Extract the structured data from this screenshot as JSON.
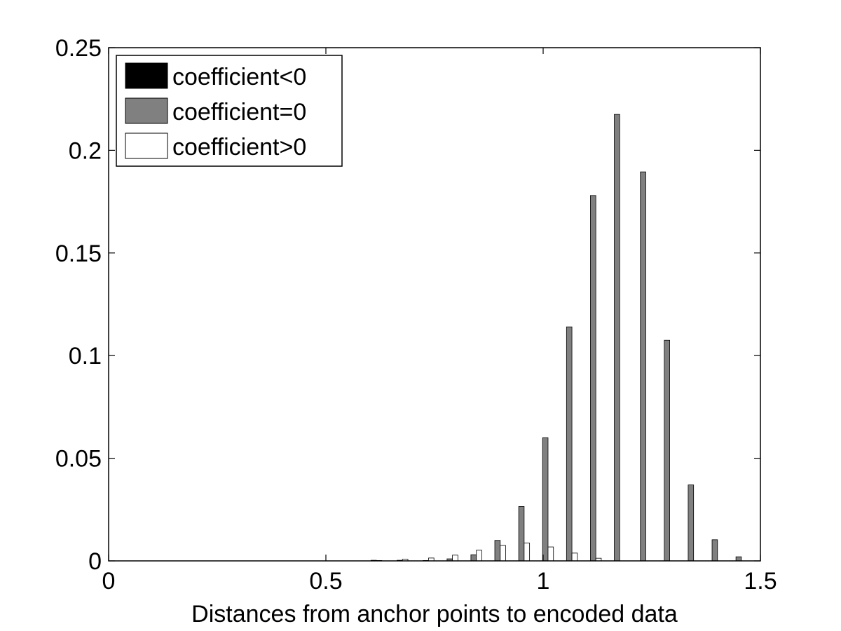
{
  "chart_data": {
    "type": "bar",
    "xlabel": "Distances from anchor points to encoded data",
    "ylabel": "",
    "xlim": [
      0,
      1.5
    ],
    "ylim": [
      0,
      0.25
    ],
    "xticks": [
      0,
      0.5,
      1,
      1.5
    ],
    "xtick_labels": [
      "0",
      "0.5",
      "1",
      "1.5"
    ],
    "yticks": [
      0,
      0.05,
      0.1,
      0.15,
      0.2,
      0.25
    ],
    "ytick_labels": [
      "0",
      "0.05",
      "0.1",
      "0.15",
      "0.2",
      "0.25"
    ],
    "grid": false,
    "legend_position": "top-left",
    "bar_width": 0.0125,
    "x": [
      0.61,
      0.67,
      0.73,
      0.785,
      0.84,
      0.895,
      0.95,
      1.005,
      1.06,
      1.115,
      1.17,
      1.23,
      1.285,
      1.34,
      1.395,
      1.45
    ],
    "series": [
      {
        "name": "coefficient<0",
        "color": "#000000",
        "values": [
          0,
          0,
          0,
          0,
          0,
          0,
          0,
          0,
          0,
          0,
          0,
          0,
          0,
          0,
          0,
          0
        ]
      },
      {
        "name": "coefficient=0",
        "color": "#808080",
        "values": [
          0.0003,
          0.0003,
          0.0002,
          0.001,
          0.003,
          0.01,
          0.0265,
          0.06,
          0.114,
          0.178,
          0.2175,
          0.1895,
          0.1075,
          0.037,
          0.0103,
          0.002
        ]
      },
      {
        "name": "coefficient>0",
        "color": "#ffffff",
        "values": [
          0.0002,
          0.0008,
          0.0014,
          0.0028,
          0.0052,
          0.0075,
          0.0087,
          0.0068,
          0.0038,
          0.0013,
          0,
          0,
          0,
          0,
          0,
          0
        ]
      }
    ]
  }
}
